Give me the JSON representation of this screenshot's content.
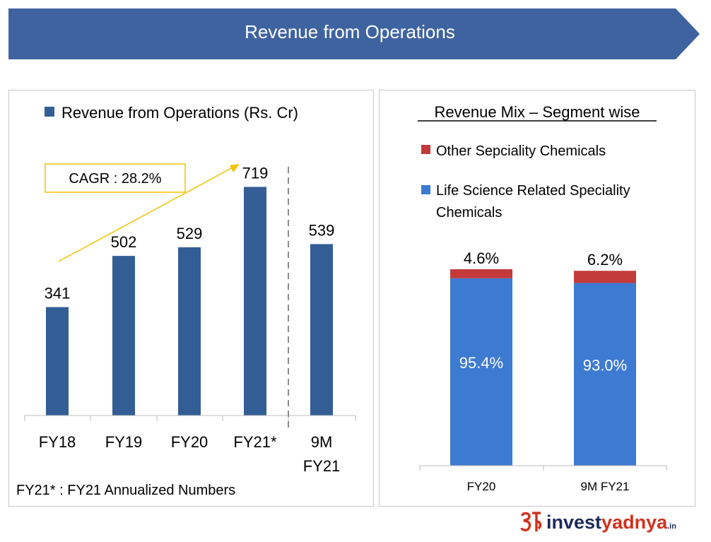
{
  "header": {
    "title": "Revenue from Operations"
  },
  "colors": {
    "banner": "#3f63a0",
    "bar": "#335e95",
    "life_science": "#3d7ad2",
    "other": "#c43a3a",
    "cagr_border": "#f2c200",
    "cagr_arrow": "#f2c200"
  },
  "chart_data": [
    {
      "type": "bar",
      "legend": [
        "Revenue from Operations (Rs. Cr)"
      ],
      "categories": [
        "FY18",
        "FY19",
        "FY20",
        "FY21*",
        "9M FY21"
      ],
      "category_lines": [
        [
          "FY18"
        ],
        [
          "FY19"
        ],
        [
          "FY20"
        ],
        [
          "FY21*"
        ],
        [
          "9M",
          "FY21"
        ]
      ],
      "values": [
        341,
        502,
        529,
        719,
        539
      ],
      "value_labels": [
        "341",
        "502",
        "529",
        "719",
        "539"
      ],
      "series": [
        {
          "name": "Revenue from Operations (Rs. Cr)",
          "values": [
            341,
            502,
            529,
            719,
            539
          ]
        }
      ],
      "ylim": [
        0,
        800
      ],
      "annotation": "CAGR : 28.2%",
      "footnote": "FY21* : FY21 Annualized Numbers",
      "grid": false
    },
    {
      "type": "bar",
      "stacked": true,
      "percent": true,
      "title": "Revenue Mix – Segment wise",
      "categories": [
        "FY20",
        "9M FY21"
      ],
      "series": [
        {
          "name": "Life Science Related Speciality Chemicals",
          "values": [
            95.4,
            93.0
          ],
          "labels": [
            "95.4%",
            "93.0%"
          ]
        },
        {
          "name": "Other Sepciality Chemicals",
          "values": [
            4.6,
            6.2
          ],
          "labels": [
            "4.6%",
            "6.2%"
          ]
        }
      ],
      "legend": [
        "Other Sepciality Chemicals",
        "Life Science Related Speciality",
        "Chemicals"
      ],
      "ylim": [
        0,
        100
      ],
      "grid": false
    }
  ],
  "branding": {
    "logo_part1": "invest",
    "logo_part2": "yadnya",
    "logo_suffix": ".in"
  }
}
